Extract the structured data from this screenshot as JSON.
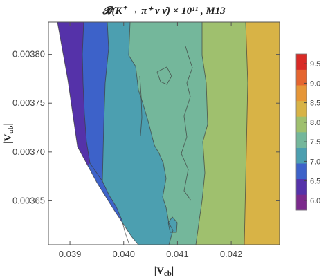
{
  "chart_data": {
    "type": "contour",
    "title": "𝓑(K⁺ → π⁺ ν ν̄) × 10¹¹ , M13",
    "xlabel": "|V_cb|",
    "ylabel": "|V_ub|",
    "xlim": [
      0.0386,
      0.0429
    ],
    "ylim": [
      0.003605,
      0.003833
    ],
    "x_ticks": [
      "0.039",
      "0.040",
      "0.041",
      "0.042"
    ],
    "y_ticks": [
      "0.00365",
      "0.00370",
      "0.00375",
      "0.00380"
    ],
    "colorbar": {
      "ticks": [
        "6.0",
        "6.5",
        "7.0",
        "7.5",
        "8.0",
        "8.5",
        "9.0",
        "9.5"
      ],
      "range": [
        5.75,
        9.75
      ],
      "colors": [
        "#7b2a8c",
        "#5532a9",
        "#3d62c9",
        "#4c9fb0",
        "#74b79b",
        "#9fc06e",
        "#d8b346",
        "#e69637",
        "#e5652f",
        "#d92a26"
      ]
    },
    "regions": [
      {
        "level": 6.5,
        "color": "#5532a9"
      },
      {
        "level": 7.0,
        "color": "#3d62c9"
      },
      {
        "level": 7.5,
        "color": "#4c9fb0"
      },
      {
        "level": 8.0,
        "color": "#74b79b"
      },
      {
        "level": 8.5,
        "color": "#9fc06e"
      },
      {
        "level": 9.0,
        "color": "#d8b346"
      }
    ],
    "grid": false
  }
}
